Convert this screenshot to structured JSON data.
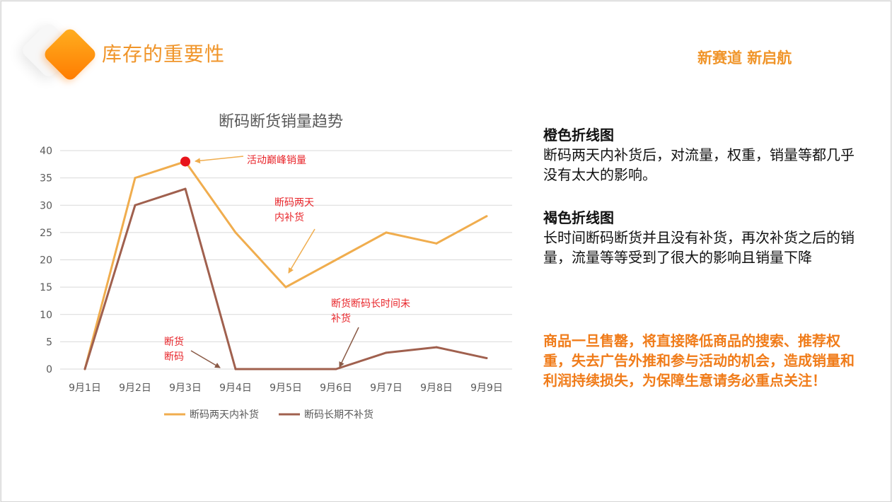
{
  "page": {
    "title": "库存的重要性",
    "tagline": "新赛道 新启航"
  },
  "chart_data": {
    "type": "line",
    "title": "断码断货销量趋势",
    "categories": [
      "9月1日",
      "9月2日",
      "9月3日",
      "9月4日",
      "9月5日",
      "9月6日",
      "9月7日",
      "9月8日",
      "9月9日"
    ],
    "ylim": [
      0,
      40
    ],
    "yticks": [
      0,
      5,
      10,
      15,
      20,
      25,
      30,
      35,
      40
    ],
    "grid": true,
    "legend_position": "bottom",
    "series": [
      {
        "name": "断码两天内补货",
        "color": "#f0ad4e",
        "values": [
          0,
          35,
          38,
          25,
          15,
          20,
          25,
          23,
          28
        ]
      },
      {
        "name": "断码长期不补货",
        "color": "#a0604e",
        "values": [
          0,
          30,
          33,
          0,
          0,
          0,
          3,
          4,
          2
        ]
      }
    ],
    "annotations": [
      {
        "text": "活动巅峰销量"
      },
      {
        "text_lines": [
          "断码两天",
          "内补货"
        ]
      },
      {
        "text_lines": [
          "断货断码长时间未",
          "补货"
        ]
      },
      {
        "text_lines": [
          "断货",
          "断码"
        ]
      }
    ],
    "highlight_color": "#e8141b"
  },
  "notes": {
    "orange": {
      "heading": "橙色折线图",
      "body": "断码两天内补货后，对流量，权重，销量等都几乎没有太大的影响。"
    },
    "brown": {
      "heading": "褐色折线图",
      "body": "长时间断码断货并且没有补货，再次补货之后的销量，流量等等受到了很大的影响且销量下降"
    },
    "warning": "商品一旦售罄，将直接降低商品的搜索、推荐权重，失去广告外推和参与活动的机会，造成销量和利润持续损失，为保障生意请务必重点关注！"
  }
}
